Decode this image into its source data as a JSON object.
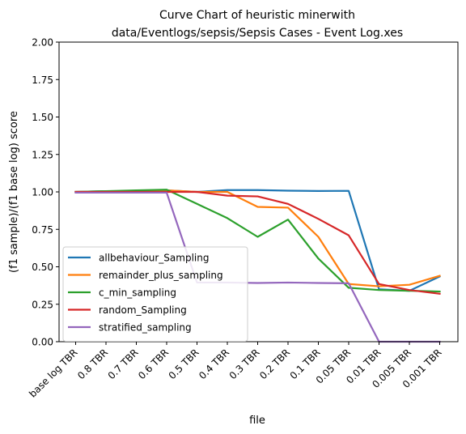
{
  "chart_data": {
    "type": "line",
    "title_line1": "Curve Chart of heuristic minerwith",
    "title_line2": "data/Eventlogs/sepsis/Sepsis Cases - Event Log.xes",
    "xlabel": "file",
    "ylabel": "(f1 sample)/(f1 base log) score",
    "categories": [
      "base log TBR",
      "0.8 TBR",
      "0.7 TBR",
      "0.6 TBR",
      "0.5 TBR",
      "0.4 TBR",
      "0.3 TBR",
      "0.2 TBR",
      "0.1 TBR",
      "0.05 TBR",
      "0.01 TBR",
      "0.005 TBR",
      "0.001 TBR"
    ],
    "ylim": [
      0,
      2.0
    ],
    "yticks": [
      "0.00",
      "0.25",
      "0.50",
      "0.75",
      "1.00",
      "1.25",
      "1.50",
      "1.75",
      "2.00"
    ],
    "legend_position": "lower-left",
    "grid": false,
    "series": [
      {
        "name": "allbehaviour_Sampling",
        "color": "#1f77b4",
        "values": [
          1.0,
          1.005,
          1.005,
          1.01,
          1.0,
          1.012,
          1.012,
          1.008,
          1.006,
          1.007,
          0.35,
          0.34,
          0.435
        ]
      },
      {
        "name": "remainder_plus_sampling",
        "color": "#ff7f0e",
        "values": [
          1.0,
          1.0,
          1.005,
          1.01,
          1.0,
          1.0,
          0.9,
          0.895,
          0.7,
          0.385,
          0.37,
          0.38,
          0.44
        ]
      },
      {
        "name": "c_min_sampling",
        "color": "#2ca02c",
        "values": [
          1.0,
          1.005,
          1.01,
          1.015,
          0.92,
          0.825,
          0.7,
          0.815,
          0.555,
          0.36,
          0.345,
          0.34,
          0.335
        ]
      },
      {
        "name": "random_Sampling",
        "color": "#d62728",
        "values": [
          1.0,
          1.0,
          1.0,
          1.0,
          1.0,
          0.975,
          0.97,
          0.92,
          0.82,
          0.71,
          0.385,
          0.345,
          0.32
        ]
      },
      {
        "name": "stratified_sampling",
        "color": "#9467bd",
        "values": [
          0.995,
          0.995,
          0.995,
          0.995,
          0.395,
          0.395,
          0.392,
          0.395,
          0.392,
          0.39,
          0.0,
          0.0,
          0.0
        ]
      }
    ]
  }
}
